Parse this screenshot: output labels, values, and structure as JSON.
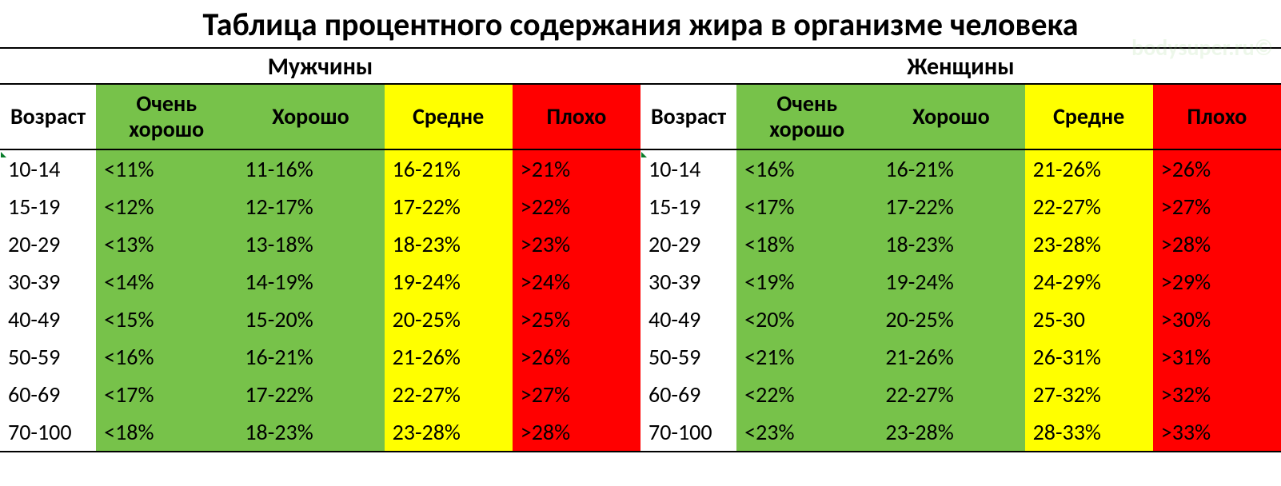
{
  "title": "Таблица процентного содержания жира в организме человека",
  "title_fontsize": 40,
  "watermark": "bodysuper.ru©",
  "watermark_color": "#9fd88f",
  "watermark_fontsize": 28,
  "subheader_fontsize": 30,
  "header_fontsize": 28,
  "cell_fontsize": 28,
  "colors": {
    "age_bg": "#ffffff",
    "very_good_bg": "#77c24a",
    "good_bg": "#77c24a",
    "average_bg": "#ffff00",
    "bad_bg": "#ff0000",
    "border": "#000000",
    "text": "#000000",
    "triangle": "#0a7d2c"
  },
  "column_headers": {
    "age": "Возраст",
    "very_good": "Очень хорошо",
    "good": "Хорошо",
    "average": "Средне",
    "bad": "Плохо"
  },
  "sections": [
    {
      "label": "Мужчины",
      "rows": [
        {
          "age": "10-14",
          "very_good": "<11%",
          "good": "11-16%",
          "average": "16-21%",
          "bad": ">21%"
        },
        {
          "age": "15-19",
          "very_good": "<12%",
          "good": "12-17%",
          "average": "17-22%",
          "bad": ">22%"
        },
        {
          "age": "20-29",
          "very_good": "<13%",
          "good": "13-18%",
          "average": "18-23%",
          "bad": ">23%"
        },
        {
          "age": "30-39",
          "very_good": "<14%",
          "good": "14-19%",
          "average": "19-24%",
          "bad": ">24%"
        },
        {
          "age": "40-49",
          "very_good": "<15%",
          "good": "15-20%",
          "average": "20-25%",
          "bad": ">25%"
        },
        {
          "age": "50-59",
          "very_good": "<16%",
          "good": "16-21%",
          "average": "21-26%",
          "bad": ">26%"
        },
        {
          "age": "60-69",
          "very_good": "<17%",
          "good": "17-22%",
          "average": "22-27%",
          "bad": ">27%"
        },
        {
          "age": "70-100",
          "very_good": "<18%",
          "good": "18-23%",
          "average": "23-28%",
          "bad": ">28%"
        }
      ]
    },
    {
      "label": "Женщины",
      "rows": [
        {
          "age": "10-14",
          "very_good": "<16%",
          "good": "16-21%",
          "average": "21-26%",
          "bad": ">26%"
        },
        {
          "age": "15-19",
          "very_good": "<17%",
          "good": "17-22%",
          "average": "22-27%",
          "bad": ">27%"
        },
        {
          "age": "20-29",
          "very_good": "<18%",
          "good": "18-23%",
          "average": "23-28%",
          "bad": ">28%"
        },
        {
          "age": "30-39",
          "very_good": "<19%",
          "good": "19-24%",
          "average": "24-29%",
          "bad": ">29%"
        },
        {
          "age": "40-49",
          "very_good": "<20%",
          "good": "20-25%",
          "average": "25-30",
          "bad": ">30%"
        },
        {
          "age": "50-59",
          "very_good": "<21%",
          "good": "21-26%",
          "average": "26-31%",
          "bad": ">31%"
        },
        {
          "age": "60-69",
          "very_good": "<22%",
          "good": "22-27%",
          "average": "27-32%",
          "bad": ">32%"
        },
        {
          "age": "70-100",
          "very_good": "<23%",
          "good": "23-28%",
          "average": "28-33%",
          "bad": ">33%"
        }
      ]
    }
  ],
  "col_widths_pct": [
    15,
    22,
    23,
    20,
    20
  ]
}
